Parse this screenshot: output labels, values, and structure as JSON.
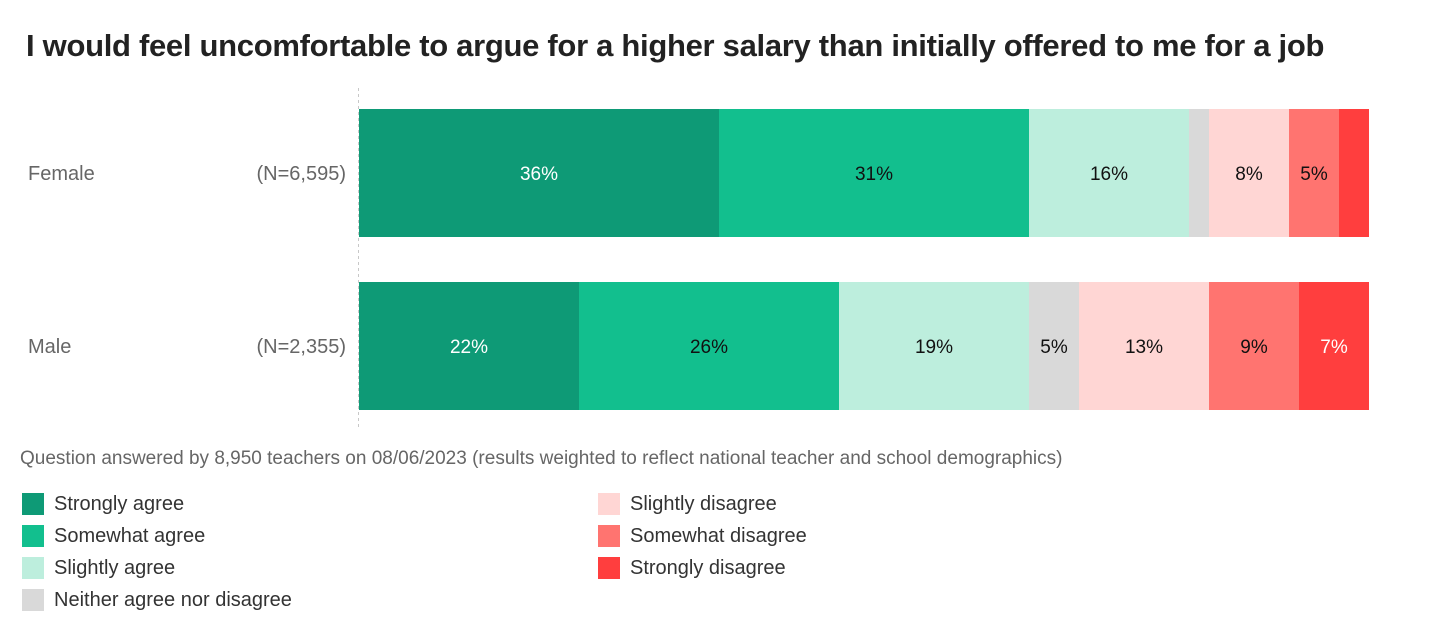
{
  "title": "I would feel uncomfortable to argue for a higher salary than initially offered to me for a job",
  "footnote": "Question answered by 8,950 teachers on 08/06/2023 (results weighted to reflect national teacher and school demographics)",
  "chart_data": {
    "type": "bar",
    "orientation": "horizontal",
    "stacked": true,
    "categories": [
      "Female",
      "Male"
    ],
    "sample_sizes": [
      "(N=6,595)",
      "(N=2,355)"
    ],
    "series": [
      {
        "name": "Strongly agree",
        "color": "#0e9a76",
        "label_color": "#ffffff",
        "values": [
          36,
          22
        ],
        "labels": [
          "36%",
          "22%"
        ]
      },
      {
        "name": "Somewhat agree",
        "color": "#12bf8e",
        "label_color": "#111111",
        "values": [
          31,
          26
        ],
        "labels": [
          "31%",
          "26%"
        ]
      },
      {
        "name": "Slightly agree",
        "color": "#bdeedd",
        "label_color": "#111111",
        "values": [
          16,
          19
        ],
        "labels": [
          "16%",
          "19%"
        ]
      },
      {
        "name": "Neither agree nor disagree",
        "color": "#d9d9d9",
        "label_color": "#111111",
        "values": [
          2,
          5
        ],
        "labels": [
          "",
          "5%"
        ]
      },
      {
        "name": "Slightly disagree",
        "color": "#ffd6d4",
        "label_color": "#111111",
        "values": [
          8,
          13
        ],
        "labels": [
          "8%",
          "13%"
        ]
      },
      {
        "name": "Somewhat disagree",
        "color": "#ff7470",
        "label_color": "#111111",
        "values": [
          5,
          9
        ],
        "labels": [
          "5%",
          "9%"
        ]
      },
      {
        "name": "Strongly disagree",
        "color": "#ff3e3e",
        "label_color": "#ffffff",
        "values": [
          3,
          7
        ],
        "labels": [
          "",
          "7%"
        ]
      }
    ],
    "legend_position": "bottom-left, two columns"
  }
}
